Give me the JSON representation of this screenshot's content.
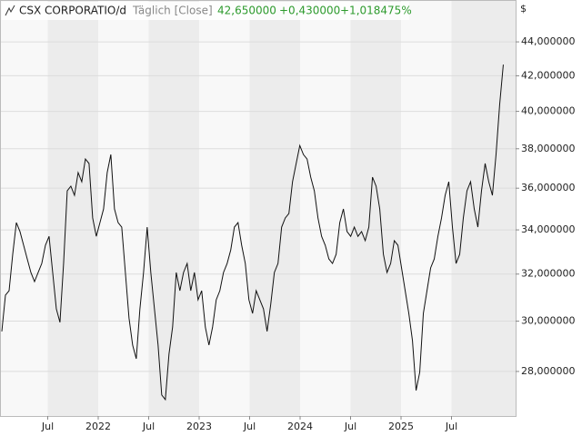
{
  "chart_data": {
    "type": "line",
    "title": "CSX CORPORATIO/d",
    "subtitle": "Täglich [Close]",
    "annotations": [
      "42,650000",
      "+0,430000",
      "+1,018475%"
    ],
    "ylabel": "$",
    "log_y": true,
    "grid": true,
    "color": "#111111",
    "x": [
      2021.045,
      2021.081,
      2021.117,
      2021.153,
      2021.189,
      2021.225,
      2021.261,
      2021.297,
      2021.333,
      2021.369,
      2021.405,
      2021.441,
      2021.477,
      2021.513,
      2021.549,
      2021.585,
      2021.621,
      2021.657,
      2021.693,
      2021.729,
      2021.765,
      2021.801,
      2021.837,
      2021.873,
      2021.909,
      2021.945,
      2021.981,
      2022.017,
      2022.053,
      2022.089,
      2022.125,
      2022.161,
      2022.197,
      2022.233,
      2022.269,
      2022.305,
      2022.341,
      2022.377,
      2022.413,
      2022.449,
      2022.485,
      2022.521,
      2022.557,
      2022.593,
      2022.629,
      2022.665,
      2022.701,
      2022.737,
      2022.773,
      2022.809,
      2022.845,
      2022.881,
      2022.917,
      2022.953,
      2022.989,
      2023.025,
      2023.061,
      2023.097,
      2023.133,
      2023.169,
      2023.205,
      2023.241,
      2023.277,
      2023.313,
      2023.349,
      2023.385,
      2023.421,
      2023.457,
      2023.493,
      2023.529,
      2023.565,
      2023.601,
      2023.637,
      2023.673,
      2023.709,
      2023.745,
      2023.781,
      2023.817,
      2023.853,
      2023.889,
      2023.925,
      2023.961,
      2023.997,
      2024.033,
      2024.069,
      2024.105,
      2024.141,
      2024.177,
      2024.213,
      2024.249,
      2024.285,
      2024.321,
      2024.357,
      2024.393,
      2024.429,
      2024.465,
      2024.501,
      2024.537,
      2024.573,
      2024.609,
      2024.645,
      2024.681,
      2024.717,
      2024.753,
      2024.789,
      2024.825,
      2024.861,
      2024.897,
      2024.933,
      2024.969,
      2025.005,
      2025.041,
      2025.077,
      2025.113,
      2025.149,
      2025.185,
      2025.221,
      2025.257,
      2025.293,
      2025.329,
      2025.365,
      2025.401,
      2025.437,
      2025.473,
      2025.509,
      2025.545,
      2025.581,
      2025.617,
      2025.653,
      2025.689,
      2025.725,
      2025.761,
      2025.797,
      2025.833,
      2025.869,
      2025.905,
      2025.941,
      2025.977,
      2026.013
    ],
    "values": [
      29.58,
      31.09,
      31.28,
      32.88,
      34.34,
      33.92,
      33.29,
      32.67,
      32.07,
      31.67,
      32.07,
      32.47,
      33.29,
      33.7,
      32.07,
      30.51,
      29.95,
      32.47,
      35.87,
      36.1,
      35.65,
      36.78,
      36.32,
      37.47,
      37.24,
      34.56,
      33.7,
      34.34,
      34.99,
      36.78,
      37.7,
      34.99,
      34.34,
      34.13,
      32.07,
      30.13,
      29.03,
      28.49,
      30.51,
      32.07,
      34.13,
      32.07,
      30.51,
      29.03,
      27.11,
      26.94,
      28.67,
      29.76,
      32.07,
      31.28,
      32.07,
      32.47,
      31.28,
      32.07,
      30.89,
      31.28,
      29.76,
      29.03,
      29.76,
      30.89,
      31.28,
      32.07,
      32.47,
      33.08,
      34.13,
      34.34,
      33.29,
      32.47,
      30.89,
      30.32,
      31.28,
      30.89,
      30.51,
      29.58,
      30.7,
      32.07,
      32.47,
      34.13,
      34.56,
      34.77,
      36.32,
      37.24,
      38.17,
      37.7,
      37.47,
      36.55,
      35.87,
      34.56,
      33.7,
      33.29,
      32.67,
      32.47,
      32.88,
      34.34,
      34.99,
      33.92,
      33.7,
      34.13,
      33.7,
      33.92,
      33.5,
      34.13,
      36.55,
      36.1,
      34.99,
      32.88,
      32.07,
      32.47,
      33.5,
      33.29,
      32.27,
      31.28,
      30.32,
      29.21,
      27.28,
      27.97,
      30.32,
      31.28,
      32.27,
      32.67,
      33.7,
      34.56,
      35.65,
      36.32,
      34.13,
      32.47,
      32.88,
      34.56,
      35.87,
      36.32,
      34.99,
      34.13,
      35.87,
      37.24,
      36.32,
      35.65,
      37.7,
      40.38,
      42.65
    ],
    "xlim": [
      2021.027,
      2026.135
    ],
    "xticks": [
      {
        "value": 2021.5,
        "label": "Jul"
      },
      2022,
      {
        "value": 2022.5,
        "label": "Jul"
      },
      2023,
      {
        "value": 2023.5,
        "label": "Jul"
      },
      2024,
      {
        "value": 2024.5,
        "label": "Jul"
      },
      2025,
      {
        "value": 2025.5,
        "label": "Jul"
      }
    ],
    "ylim": [
      26.34,
      46.6
    ],
    "yticks": [
      {
        "value": 28,
        "label": "28,000000"
      },
      {
        "value": 30,
        "label": "30,000000"
      },
      {
        "value": 32,
        "label": "32,000000"
      },
      {
        "value": 34,
        "label": "34,000000"
      },
      {
        "value": 36,
        "label": "36,000000"
      },
      {
        "value": 38,
        "label": "38,000000"
      },
      {
        "value": 40,
        "label": "40,000000"
      },
      {
        "value": 42,
        "label": "42,000000"
      },
      {
        "value": 44,
        "label": "44,000000"
      }
    ]
  }
}
